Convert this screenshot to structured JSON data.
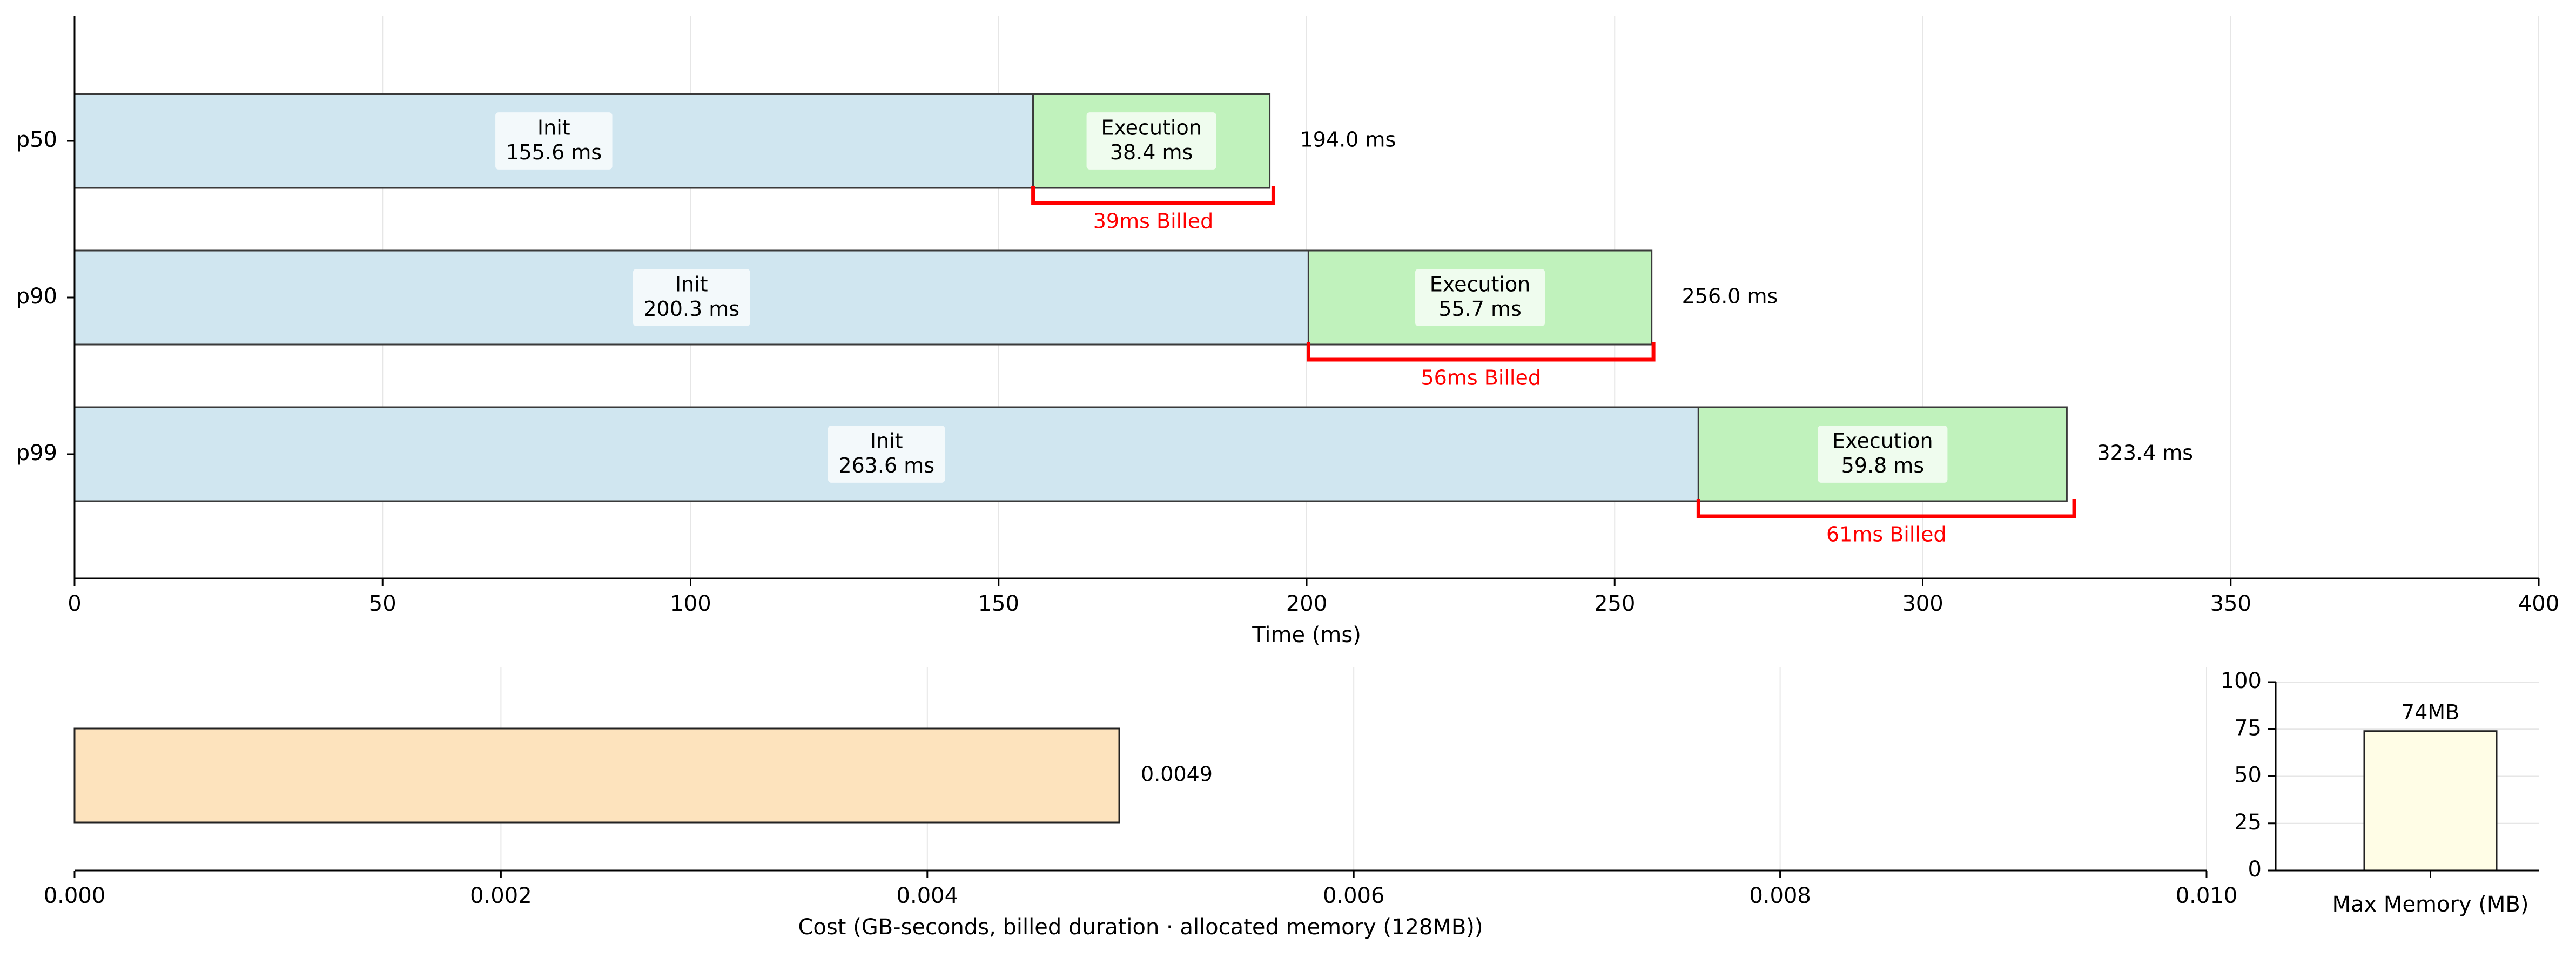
{
  "chart_data": [
    {
      "type": "bar",
      "orientation": "horizontal",
      "stacked": true,
      "categories": [
        "p50",
        "p90",
        "p99"
      ],
      "series": [
        {
          "name": "Init",
          "values": [
            155.6,
            200.3,
            263.6
          ],
          "color": "#d0e6f0"
        },
        {
          "name": "Execution",
          "values": [
            38.4,
            55.7,
            59.8
          ],
          "color": "#c0f2bc"
        }
      ],
      "segment_labels": [
        {
          "init": [
            "Init",
            "155.6 ms"
          ],
          "exec": [
            "Execution",
            "38.4 ms"
          ]
        },
        {
          "init": [
            "Init",
            "200.3 ms"
          ],
          "exec": [
            "Execution",
            "55.7 ms"
          ]
        },
        {
          "init": [
            "Init",
            "263.6 ms"
          ],
          "exec": [
            "Execution",
            "59.8 ms"
          ]
        }
      ],
      "totals": [
        194.0,
        256.0,
        323.4
      ],
      "total_labels": [
        "194.0 ms",
        "256.0 ms",
        "323.4 ms"
      ],
      "billed": [
        {
          "value": 39,
          "start": 155.6,
          "label": "39ms Billed"
        },
        {
          "value": 56,
          "start": 200.3,
          "label": "56ms Billed"
        },
        {
          "value": 61,
          "start": 263.6,
          "label": "61ms Billed"
        }
      ],
      "billed_color": "#ff0000",
      "xlabel": "Time (ms)",
      "xlim": [
        0,
        400
      ],
      "xticks": [
        0,
        50,
        100,
        150,
        200,
        250,
        300,
        350,
        400
      ],
      "xtick_labels": [
        "0",
        "50",
        "100",
        "150",
        "200",
        "250",
        "300",
        "350",
        "400"
      ],
      "grid": "vertical"
    },
    {
      "type": "bar",
      "orientation": "horizontal",
      "values": [
        0.0049
      ],
      "value_labels": [
        "0.0049"
      ],
      "color": "#fde3bd",
      "xlabel": "Cost (GB-seconds, billed duration · allocated memory (128MB))",
      "xlim": [
        0,
        0.01
      ],
      "xticks": [
        0,
        0.002,
        0.004,
        0.006,
        0.008,
        0.01
      ],
      "xtick_labels": [
        "0.000",
        "0.002",
        "0.004",
        "0.006",
        "0.008",
        "0.010"
      ],
      "grid": "vertical"
    },
    {
      "type": "bar",
      "categories": [
        "Max Memory (MB)"
      ],
      "values": [
        74
      ],
      "value_labels": [
        "74MB"
      ],
      "color": "#fffde6",
      "ylim": [
        0,
        100
      ],
      "yticks": [
        0,
        25,
        50,
        75,
        100
      ],
      "ytick_labels": [
        "0",
        "25",
        "50",
        "75",
        "100"
      ],
      "grid": "horizontal"
    }
  ]
}
